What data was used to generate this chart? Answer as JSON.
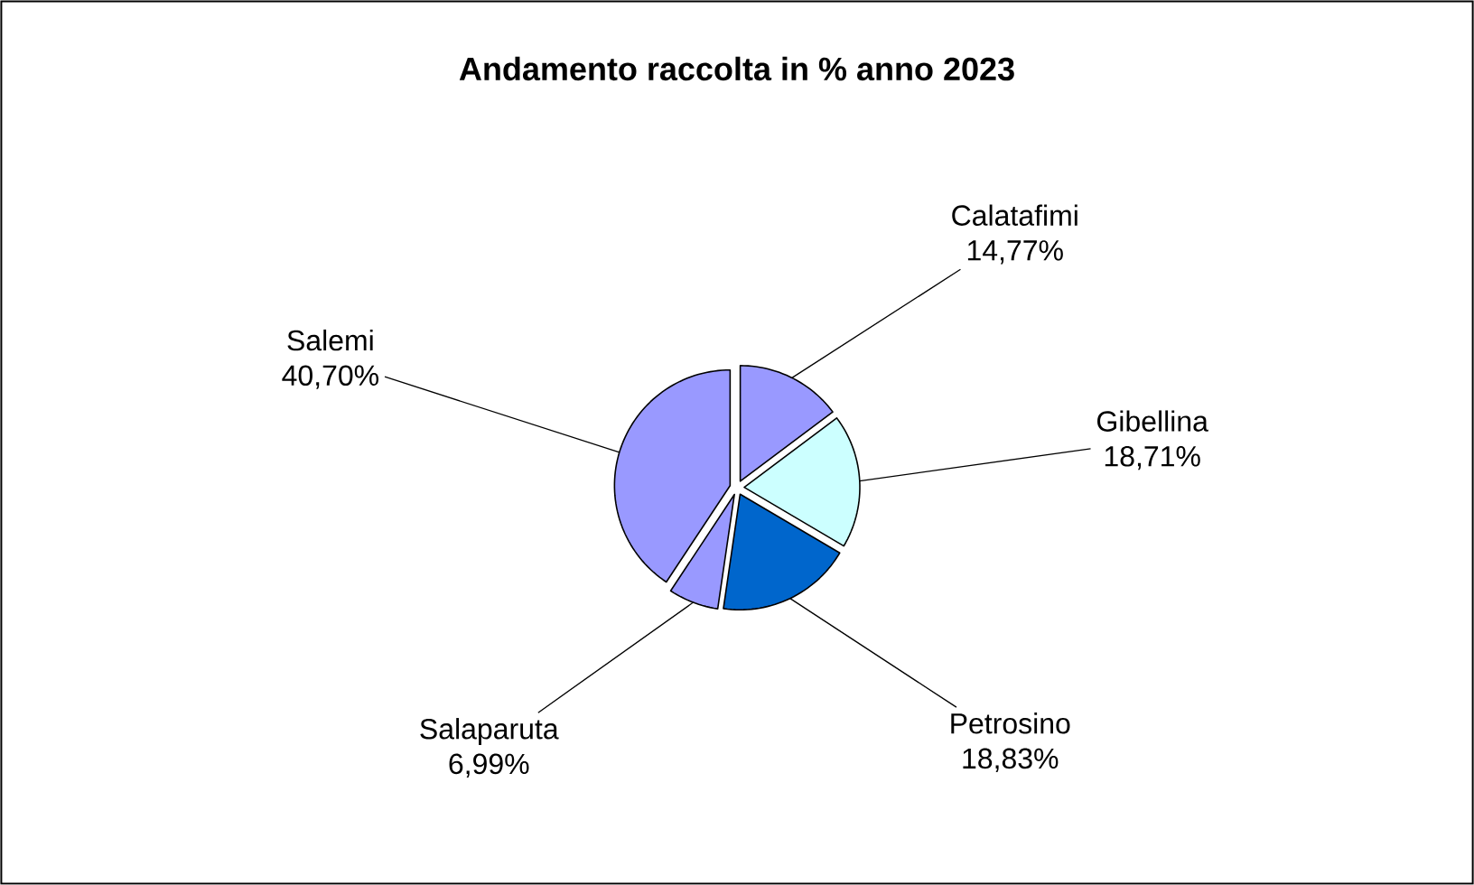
{
  "chart_data": {
    "type": "pie",
    "title": "Andamento raccolta in % anno 2023",
    "categories": [
      "Calatafimi",
      "Gibellina",
      "Petrosino",
      "Salaparuta",
      "Salemi"
    ],
    "values": [
      14.77,
      18.71,
      18.83,
      6.99,
      40.7
    ],
    "colors": [
      "#9999ff",
      "#ccffff",
      "#0066cc",
      "#9999ff",
      "#9999ff"
    ],
    "value_labels": [
      "14,77%",
      "18,71%",
      "18,83%",
      "6,99%",
      "40,70%"
    ]
  }
}
